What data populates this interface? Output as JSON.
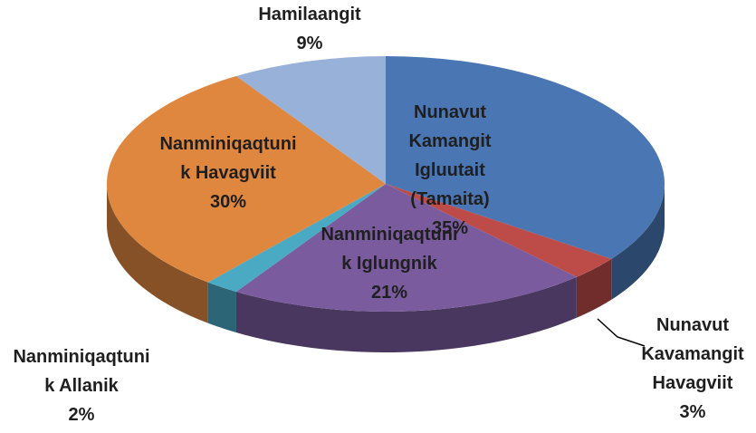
{
  "chart_data": {
    "type": "pie3d",
    "categories": [
      "Nunavut\nKamangit\nIgluutait\n(Tamaita)",
      "Nunavut\nKavamangit\nHavagviit",
      "Nanminiqaqtuni\nk Iglungnik",
      "Nanminiqaqtuni\nk Allanik",
      "Nanminiqaqtuni\nk  Havagviit",
      "Hamilaangit"
    ],
    "values": [
      35,
      3,
      21,
      2,
      30,
      9
    ],
    "value_labels": [
      "35%",
      "3%",
      "21%",
      "2%",
      "30%",
      "9%"
    ],
    "colors": [
      "#4a76b4",
      "#bd4b48",
      "#7a5c9e",
      "#4aa9c3",
      "#e0873f",
      "#97b1d9"
    ]
  }
}
